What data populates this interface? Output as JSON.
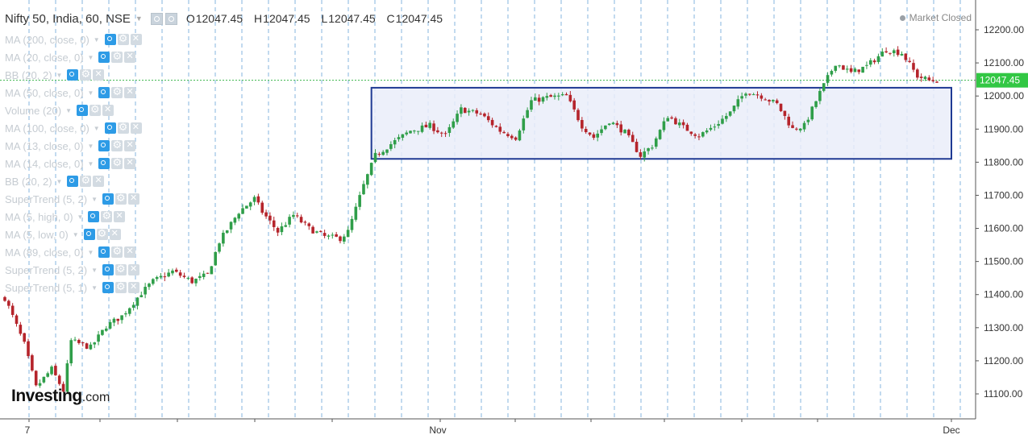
{
  "header": {
    "title": "Nifty 50, India, 60, NSE",
    "ohlc": [
      {
        "key": "O",
        "value": "12047.45"
      },
      {
        "key": "H",
        "value": "12047.45"
      },
      {
        "key": "L",
        "value": "12047.45"
      },
      {
        "key": "C",
        "value": "12047.45"
      }
    ],
    "status": "Market Closed"
  },
  "indicators": [
    "MA (200, close, 0)",
    "MA (20, close, 0)",
    "BB (20, 2)",
    "MA (50, close, 0)",
    "Volume (20)",
    "MA (100, close, 0)",
    "MA (13, close, 0)",
    "MA (14, close, 0)",
    "BB (20, 2)",
    "SuperTrend (5, 2)",
    "MA (5, high, 0)",
    "MA (5, low, 0)",
    "MA (89, close, 0)",
    "SuperTrend (5, 2)",
    "SuperTrend (5, 1)"
  ],
  "logo": {
    "brand": "Investing",
    "domain": ".com"
  },
  "colors": {
    "up": "#2f9e49",
    "down": "#b5242b",
    "grid": "#5b9bd5",
    "box_fill": "#eaedf9",
    "box_stroke": "#1f3a93",
    "price_line": "#39b54a",
    "price_tag": "#32c744"
  },
  "chart_data": {
    "type": "candlestick",
    "title": "Nifty 50, India, 60, NSE",
    "ylim": [
      11050,
      12250
    ],
    "y_ticks": [
      "12200.00",
      "12100.00",
      "12000.00",
      "11900.00",
      "11800.00",
      "11700.00",
      "11600.00",
      "11500.00",
      "11400.00",
      "11300.00",
      "11200.00",
      "11100.00"
    ],
    "x_ticks": [
      "7",
      "Nov",
      "Dec"
    ],
    "last_price": 12047.45,
    "last_price_label": "12047.45",
    "range_box": {
      "start_index": 94,
      "end_index": 239,
      "high": 12025,
      "low": 11810
    },
    "close_path": [
      [
        0,
        11390
      ],
      [
        5,
        11250
      ],
      [
        8,
        11120
      ],
      [
        12,
        11175
      ],
      [
        15,
        11110
      ],
      [
        17,
        11260
      ],
      [
        22,
        11240
      ],
      [
        26,
        11305
      ],
      [
        30,
        11335
      ],
      [
        35,
        11405
      ],
      [
        38,
        11440
      ],
      [
        43,
        11470
      ],
      [
        48,
        11440
      ],
      [
        52,
        11460
      ],
      [
        55,
        11560
      ],
      [
        60,
        11650
      ],
      [
        64,
        11690
      ],
      [
        66,
        11650
      ],
      [
        70,
        11590
      ],
      [
        74,
        11640
      ],
      [
        78,
        11600
      ],
      [
        82,
        11575
      ],
      [
        86,
        11570
      ],
      [
        88,
        11590
      ],
      [
        92,
        11730
      ],
      [
        95,
        11820
      ],
      [
        99,
        11855
      ],
      [
        104,
        11895
      ],
      [
        109,
        11910
      ],
      [
        113,
        11880
      ],
      [
        117,
        11960
      ],
      [
        122,
        11945
      ],
      [
        127,
        11895
      ],
      [
        131,
        11875
      ],
      [
        135,
        11985
      ],
      [
        139,
        11995
      ],
      [
        144,
        12000
      ],
      [
        148,
        11910
      ],
      [
        151,
        11875
      ],
      [
        155,
        11925
      ],
      [
        159,
        11890
      ],
      [
        163,
        11820
      ],
      [
        166,
        11850
      ],
      [
        170,
        11940
      ],
      [
        174,
        11905
      ],
      [
        178,
        11880
      ],
      [
        182,
        11910
      ],
      [
        186,
        11950
      ],
      [
        190,
        12015
      ],
      [
        194,
        12000
      ],
      [
        198,
        11975
      ],
      [
        202,
        11900
      ],
      [
        205,
        11910
      ],
      [
        209,
        12010
      ],
      [
        213,
        12100
      ],
      [
        217,
        12070
      ],
      [
        221,
        12090
      ],
      [
        226,
        12140
      ],
      [
        230,
        12130
      ],
      [
        234,
        12060
      ],
      [
        237,
        12047
      ]
    ]
  }
}
